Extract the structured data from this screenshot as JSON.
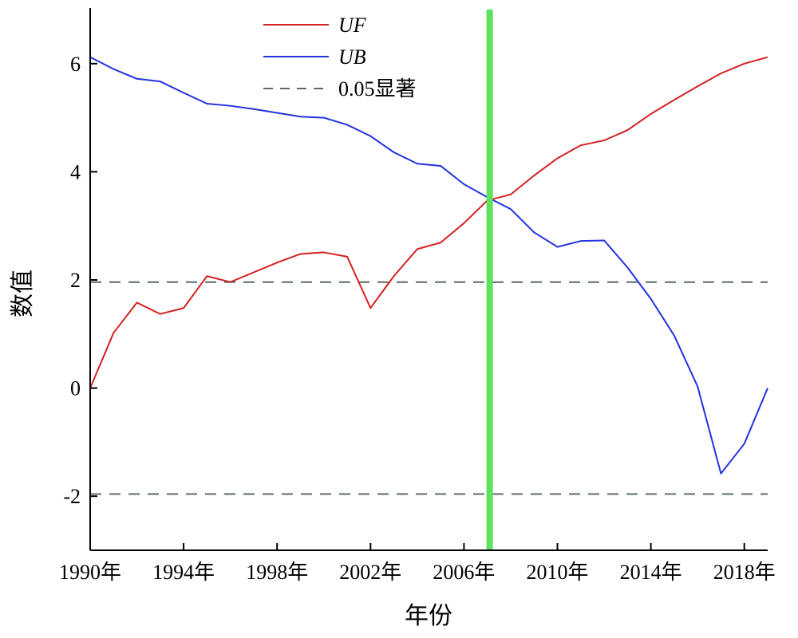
{
  "chart_data": {
    "type": "line",
    "title": "",
    "xlabel": "年份",
    "ylabel": "数值",
    "xlim": [
      1990,
      2019
    ],
    "ylim": [
      -3,
      7
    ],
    "grid": false,
    "legend_position": "top-center",
    "x_ticks": [
      {
        "value": 1990,
        "label": "1990年"
      },
      {
        "value": 1994,
        "label": "1994年"
      },
      {
        "value": 1998,
        "label": "1998年"
      },
      {
        "value": 2002,
        "label": "2002年"
      },
      {
        "value": 2006,
        "label": "2006年"
      },
      {
        "value": 2010,
        "label": "2010年"
      },
      {
        "value": 2014,
        "label": "2014年"
      },
      {
        "value": 2018,
        "label": "2018年"
      }
    ],
    "y_ticks": [
      {
        "value": -2,
        "label": "-2"
      },
      {
        "value": 0,
        "label": "0"
      },
      {
        "value": 2,
        "label": "2"
      },
      {
        "value": 4,
        "label": "4"
      },
      {
        "value": 6,
        "label": "6"
      }
    ],
    "x": [
      1990,
      1991,
      1992,
      1993,
      1994,
      1995,
      1996,
      1997,
      1998,
      1999,
      2000,
      2001,
      2002,
      2003,
      2004,
      2005,
      2006,
      2007,
      2008,
      2009,
      2010,
      2011,
      2012,
      2013,
      2014,
      2015,
      2016,
      2017,
      2018,
      2019
    ],
    "series": [
      {
        "name": "UF",
        "color": "#d42020",
        "style": "solid",
        "values": [
          0.0,
          1.02,
          1.58,
          1.37,
          1.48,
          2.07,
          1.96,
          2.14,
          2.32,
          2.48,
          2.51,
          2.43,
          1.48,
          2.07,
          2.57,
          2.69,
          3.05,
          3.47,
          3.58,
          3.93,
          4.25,
          4.49,
          4.58,
          4.77,
          5.07,
          5.33,
          5.58,
          5.82,
          6.0,
          6.12
        ]
      },
      {
        "name": "UB",
        "color": "#2233dd",
        "style": "solid",
        "values": [
          6.12,
          5.9,
          5.72,
          5.67,
          5.46,
          5.26,
          5.22,
          5.16,
          5.09,
          5.02,
          5.0,
          4.87,
          4.66,
          4.36,
          4.15,
          4.11,
          3.77,
          3.53,
          3.31,
          2.88,
          2.61,
          2.72,
          2.73,
          2.23,
          1.65,
          0.97,
          0.03,
          -1.58,
          -1.03,
          0.0
        ]
      }
    ],
    "reference_lines": [
      {
        "name": "0.05显著",
        "orientation": "horizontal",
        "values": [
          1.96,
          -1.96
        ],
        "color": "#5b6b6b",
        "style": "dashed"
      }
    ],
    "highlight_line": {
      "orientation": "vertical",
      "x": 2007.1,
      "color": "#5ce25c"
    }
  }
}
